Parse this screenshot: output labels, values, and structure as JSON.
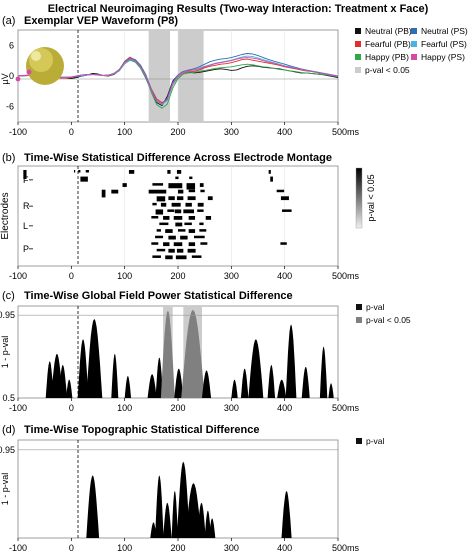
{
  "figure_title": "Electrical Neuroimaging Results (Two-way Interaction: Treatment x Face)",
  "colors": {
    "neutral_pb": "#111111",
    "fearful_pb": "#e0302e",
    "happy_pb": "#2fa84a",
    "neutral_ps": "#2d6fb5",
    "fearful_ps": "#49b3e2",
    "happy_ps": "#d64aa5",
    "sig_band": "#cccccc",
    "gfp_sig": "#808080"
  },
  "chart_data": [
    {
      "id": "a",
      "type": "line",
      "panel_label": "(a)",
      "title": "Exemplar VEP Waveform (P8)",
      "ylabel": "µV",
      "x_unit": "ms",
      "xlim": [
        -100,
        500
      ],
      "ylim": [
        -9,
        9
      ],
      "xticks": [
        "-100",
        "0",
        "100",
        "200",
        "300",
        "400",
        "500ms"
      ],
      "yticks": [
        "6",
        "0",
        "-6"
      ],
      "sig_windows": [
        [
          145,
          185
        ],
        [
          200,
          248
        ]
      ],
      "x": [
        -100,
        -90,
        -80,
        -70,
        -60,
        -50,
        -40,
        -30,
        -20,
        -10,
        0,
        10,
        20,
        30,
        40,
        50,
        60,
        70,
        80,
        90,
        100,
        110,
        120,
        130,
        140,
        150,
        160,
        170,
        180,
        190,
        200,
        210,
        220,
        230,
        240,
        250,
        260,
        270,
        280,
        290,
        300,
        310,
        320,
        330,
        340,
        350,
        360,
        370,
        380,
        390,
        400,
        410,
        420,
        430,
        440,
        450,
        460,
        470,
        480,
        490,
        500
      ],
      "series": [
        {
          "name": "Neutral (PB)",
          "color_key": "neutral_pb",
          "values": [
            0,
            0.1,
            0.1,
            0.2,
            0.2,
            0.1,
            0,
            -0.2,
            -0.3,
            -0.4,
            -0.5,
            -0.3,
            0,
            0.2,
            0.5,
            0.4,
            0.1,
            0,
            0.3,
            1.1,
            2.6,
            3.3,
            2.8,
            1.5,
            -0.5,
            -3,
            -5.2,
            -5.8,
            -4,
            -1,
            0.2,
            0.9,
            0.8,
            0.6,
            0.7,
            0.9,
            1.1,
            1.3,
            1.4,
            1.3,
            1.1,
            1.2,
            1.6,
            1.9,
            2,
            1.9,
            1.7,
            1.6,
            1.5,
            1.4,
            1.2,
            1.0,
            0.8,
            0.6,
            0.6,
            0.5,
            0.4,
            0.3,
            0.1,
            -0.1,
            -0.3
          ]
        },
        {
          "name": "Fearful (PB)",
          "color_key": "fearful_pb",
          "values": [
            0,
            0.1,
            0.2,
            0.2,
            0.1,
            0,
            -0.1,
            -0.2,
            -0.4,
            -0.4,
            -0.3,
            -0.1,
            0.1,
            0.2,
            0.3,
            0.3,
            0.1,
            0.2,
            0.5,
            1.2,
            2.9,
            3.7,
            3.1,
            1.9,
            0,
            -2.5,
            -4.5,
            -5.2,
            -4.6,
            -1.8,
            -0.2,
            0.6,
            0.8,
            0.9,
            1.2,
            1.6,
            1.9,
            2.1,
            2.3,
            2.4,
            2.6,
            2.9,
            3.2,
            3.3,
            3.1,
            2.9,
            2.7,
            2.5,
            2.3,
            2.1,
            1.8,
            1.6,
            1.4,
            1.2,
            1.0,
            0.9,
            0.7,
            0.5,
            0.3,
            0.1,
            -0.1
          ]
        },
        {
          "name": "Happy (PB)",
          "color_key": "happy_pb",
          "values": [
            0,
            0,
            0.1,
            0.1,
            0.1,
            0,
            -0.1,
            -0.2,
            -0.3,
            -0.3,
            -0.2,
            0,
            0.2,
            0.3,
            0.3,
            0.2,
            0.1,
            0.1,
            0.4,
            1.0,
            2.4,
            3.1,
            2.7,
            1.5,
            -0.4,
            -3.2,
            -5.6,
            -6.3,
            -5.5,
            -2.4,
            -0.5,
            0.4,
            0.6,
            0.7,
            0.9,
            1.1,
            1.3,
            1.5,
            1.6,
            1.7,
            1.8,
            2.0,
            2.2,
            2.3,
            2.2,
            2.0,
            1.8,
            1.7,
            1.5,
            1.3,
            1.2,
            1.0,
            0.9,
            0.7,
            0.6,
            0.5,
            0.4,
            0.3,
            0.2,
            0.0,
            -0.1
          ]
        },
        {
          "name": "Neutral (PS)",
          "color_key": "neutral_ps",
          "values": [
            0,
            0.1,
            0.1,
            0.1,
            0.1,
            0,
            -0.1,
            -0.2,
            -0.3,
            -0.3,
            -0.2,
            -0.1,
            0,
            0.2,
            0.3,
            0.3,
            0.1,
            0.2,
            0.5,
            1.3,
            2.8,
            3.5,
            3.2,
            2.1,
            0.2,
            -2.6,
            -4.8,
            -5.5,
            -4.3,
            -1.2,
            0.2,
            0.9,
            1.2,
            1.4,
            1.8,
            2.3,
            2.8,
            3.1,
            3.3,
            3.4,
            3.6,
            3.9,
            4.2,
            4.4,
            4.3,
            4.0,
            3.6,
            3.2,
            2.9,
            2.6,
            2.3,
            2.0,
            1.7,
            1.4,
            1.2,
            1.0,
            0.8,
            0.6,
            0.4,
            0.2,
            0.0
          ]
        },
        {
          "name": "Fearful (PS)",
          "color_key": "fearful_ps",
          "values": [
            0,
            0.1,
            0.1,
            0.1,
            0.1,
            0,
            -0.1,
            -0.1,
            -0.2,
            -0.2,
            -0.2,
            0,
            0.1,
            0.2,
            0.3,
            0.2,
            0.1,
            0.1,
            0.4,
            1.1,
            2.5,
            3.2,
            2.9,
            1.7,
            -0.2,
            -2.9,
            -5.0,
            -5.6,
            -4.8,
            -1.7,
            -0.1,
            0.7,
            1.0,
            1.2,
            1.5,
            1.9,
            2.2,
            2.5,
            2.7,
            2.9,
            3.1,
            3.4,
            3.7,
            3.9,
            3.8,
            3.5,
            3.2,
            2.9,
            2.6,
            2.3,
            2.0,
            1.8,
            1.5,
            1.3,
            1.1,
            0.9,
            0.7,
            0.5,
            0.3,
            0.1,
            -0.1
          ]
        },
        {
          "name": "Happy (PS)",
          "color_key": "happy_ps",
          "values": [
            0,
            0.1,
            0.1,
            0.1,
            0.1,
            0,
            -0.1,
            -0.2,
            -0.3,
            -0.3,
            -0.2,
            0,
            0.2,
            0.3,
            0.3,
            0.2,
            0.1,
            0.2,
            0.5,
            1.2,
            2.7,
            3.4,
            3.0,
            1.8,
            -0.1,
            -2.8,
            -4.9,
            -5.4,
            -4.6,
            -1.4,
            0.1,
            0.8,
            1.1,
            1.2,
            1.4,
            1.8,
            2.1,
            2.4,
            2.6,
            2.8,
            3.0,
            3.3,
            3.5,
            3.6,
            3.5,
            3.3,
            3.0,
            2.7,
            2.5,
            2.2,
            1.9,
            1.7,
            1.5,
            1.3,
            1.1,
            0.9,
            0.7,
            0.5,
            0.3,
            0.1,
            -0.1
          ]
        }
      ],
      "legend": [
        {
          "label": "Neutral (PB)",
          "color_key": "neutral_pb"
        },
        {
          "label": "Neutral (PS)",
          "color_key": "neutral_ps"
        },
        {
          "label": "Fearful (PB)",
          "color_key": "fearful_pb"
        },
        {
          "label": "Fearful (PS)",
          "color_key": "fearful_ps"
        },
        {
          "label": "Happy (PB)",
          "color_key": "happy_pb"
        },
        {
          "label": "Happy (PS)",
          "color_key": "happy_ps"
        },
        {
          "label": "p-val < 0.05",
          "color_key": "sig_band"
        }
      ],
      "grid": true
    },
    {
      "id": "b",
      "type": "heatmap",
      "panel_label": "(b)",
      "title": "Time-Wise Statistical Difference Across Electrode Montage",
      "ylabel": "Electrodes",
      "x_unit": "ms",
      "xlim": [
        -100,
        500
      ],
      "xticks": [
        "-100",
        "0",
        "100",
        "200",
        "300",
        "400",
        "500ms"
      ],
      "row_labels": [
        "F",
        "R",
        "L",
        "P"
      ],
      "row_label_rows": [
        3,
        11,
        17,
        24
      ],
      "n_rows": 28,
      "colorbar_label": "p-val < 0.05",
      "segments": [
        [
          0,
          6,
          -90,
          -84
        ],
        [
          0,
          1,
          5,
          7
        ],
        [
          0,
          1,
          13,
          17
        ],
        [
          0,
          1,
          27,
          33
        ],
        [
          0,
          2,
          108,
          118
        ],
        [
          0,
          2,
          180,
          186
        ],
        [
          0,
          2,
          198,
          206
        ],
        [
          0,
          2,
          370,
          374
        ],
        [
          1,
          3,
          17,
          31
        ],
        [
          1,
          1,
          195,
          201
        ],
        [
          1,
          1,
          221,
          227
        ],
        [
          1,
          3,
          373,
          378
        ],
        [
          2,
          2,
          96,
          104
        ],
        [
          2,
          1,
          152,
          172
        ],
        [
          2,
          3,
          182,
          208
        ],
        [
          2,
          4,
          216,
          232
        ],
        [
          2,
          2,
          241,
          248
        ],
        [
          3,
          5,
          57,
          64
        ],
        [
          3,
          2,
          75,
          88
        ],
        [
          3,
          2,
          145,
          178
        ],
        [
          3,
          2,
          200,
          210
        ],
        [
          3,
          1,
          220,
          232
        ],
        [
          3,
          1,
          242,
          250
        ],
        [
          3,
          1,
          385,
          399
        ],
        [
          4,
          3,
          160,
          176
        ],
        [
          4,
          2,
          182,
          194
        ],
        [
          4,
          2,
          198,
          210
        ],
        [
          4,
          2,
          218,
          233
        ],
        [
          4,
          2,
          256,
          265
        ],
        [
          4,
          2,
          393,
          408
        ],
        [
          5,
          1,
          152,
          160
        ],
        [
          5,
          2,
          168,
          178
        ],
        [
          5,
          2,
          188,
          205
        ],
        [
          5,
          2,
          214,
          226
        ],
        [
          5,
          2,
          237,
          248
        ],
        [
          6,
          3,
          158,
          172
        ],
        [
          6,
          1,
          180,
          193
        ],
        [
          6,
          2,
          194,
          206
        ],
        [
          6,
          2,
          210,
          230
        ],
        [
          6,
          1,
          236,
          248
        ],
        [
          6,
          1,
          395,
          413
        ],
        [
          7,
          1,
          150,
          163
        ],
        [
          7,
          2,
          172,
          184
        ],
        [
          7,
          2,
          192,
          208
        ],
        [
          7,
          2,
          220,
          232
        ],
        [
          7,
          2,
          252,
          262
        ],
        [
          8,
          1,
          165,
          182
        ],
        [
          8,
          2,
          195,
          208
        ],
        [
          8,
          1,
          212,
          226
        ],
        [
          8,
          1,
          240,
          248
        ],
        [
          9,
          1,
          160,
          168
        ],
        [
          9,
          2,
          176,
          190
        ],
        [
          9,
          1,
          200,
          214
        ],
        [
          9,
          2,
          220,
          232
        ],
        [
          9,
          1,
          240,
          253
        ],
        [
          10,
          1,
          157,
          172
        ],
        [
          10,
          2,
          182,
          196
        ],
        [
          10,
          2,
          204,
          218
        ],
        [
          10,
          1,
          230,
          250
        ],
        [
          11,
          1,
          150,
          163
        ],
        [
          11,
          2,
          172,
          184
        ],
        [
          11,
          2,
          192,
          208
        ],
        [
          11,
          2,
          220,
          232
        ],
        [
          11,
          1,
          242,
          255
        ],
        [
          11,
          1,
          392,
          404
        ],
        [
          12,
          1,
          160,
          176
        ],
        [
          12,
          2,
          182,
          194
        ],
        [
          12,
          2,
          198,
          210
        ],
        [
          12,
          2,
          218,
          233
        ],
        [
          13,
          1,
          152,
          168
        ],
        [
          13,
          2,
          176,
          190
        ],
        [
          13,
          2,
          196,
          216
        ],
        [
          13,
          1,
          226,
          244
        ]
      ]
    },
    {
      "id": "c",
      "type": "area",
      "panel_label": "(c)",
      "title": "Time-Wise Global Field Power Statistical Difference",
      "ylabel": "1 - p-val",
      "x_unit": "ms",
      "xlim": [
        -100,
        500
      ],
      "ylim": [
        0.5,
        1.0
      ],
      "yticks": [
        "0.95",
        "0.5"
      ],
      "xticks": [
        "-100",
        "0",
        "100",
        "200",
        "300",
        "400",
        "500ms"
      ],
      "threshold": 0.95,
      "sig_windows": [
        [
          172,
          190
        ],
        [
          210,
          245
        ]
      ],
      "bumps": [
        [
          -48,
          -33,
          0.7
        ],
        [
          -38,
          -16,
          0.74
        ],
        [
          -24,
          -8,
          0.68
        ],
        [
          -10,
          2,
          0.6
        ],
        [
          12,
          32,
          0.82
        ],
        [
          28,
          58,
          0.93
        ],
        [
          75,
          88,
          0.74
        ],
        [
          100,
          112,
          0.62
        ],
        [
          143,
          160,
          0.63
        ],
        [
          158,
          172,
          0.72
        ],
        [
          168,
          194,
          0.975
        ],
        [
          193,
          210,
          0.66
        ],
        [
          206,
          250,
          0.98
        ],
        [
          245,
          262,
          0.65
        ],
        [
          300,
          312,
          0.6
        ],
        [
          318,
          332,
          0.66
        ],
        [
          332,
          360,
          0.82
        ],
        [
          368,
          382,
          0.68
        ],
        [
          386,
          403,
          0.6
        ],
        [
          402,
          422,
          0.9
        ],
        [
          432,
          447,
          0.67
        ],
        [
          466,
          480,
          0.78
        ],
        [
          482,
          492,
          0.58
        ]
      ],
      "legend": [
        {
          "label": "p-val",
          "color_key": "neutral_pb"
        },
        {
          "label": "p-val < 0.05",
          "color_key": "gfp_sig"
        }
      ]
    },
    {
      "id": "d",
      "type": "area",
      "panel_label": "(d)",
      "title": "Time-Wise Topographic Statistical Difference",
      "ylabel": "1 - p-val",
      "x_unit": "ms",
      "xlim": [
        -100,
        500
      ],
      "ylim": [
        0.5,
        1.0
      ],
      "yticks": [
        "0.95"
      ],
      "xticks": [
        "-100",
        "0",
        "100",
        "200",
        "300",
        "400",
        "500ms"
      ],
      "threshold": 0.95,
      "bumps": [
        [
          28,
          52,
          0.82
        ],
        [
          148,
          160,
          0.58
        ],
        [
          157,
          173,
          0.82
        ],
        [
          172,
          188,
          0.68
        ],
        [
          188,
          200,
          0.74
        ],
        [
          198,
          222,
          0.89
        ],
        [
          214,
          244,
          0.78
        ],
        [
          236,
          252,
          0.68
        ],
        [
          250,
          262,
          0.64
        ],
        [
          258,
          270,
          0.6
        ],
        [
          394,
          413,
          0.74
        ]
      ],
      "legend": [
        {
          "label": "p-val",
          "color_key": "neutral_pb"
        }
      ]
    }
  ]
}
